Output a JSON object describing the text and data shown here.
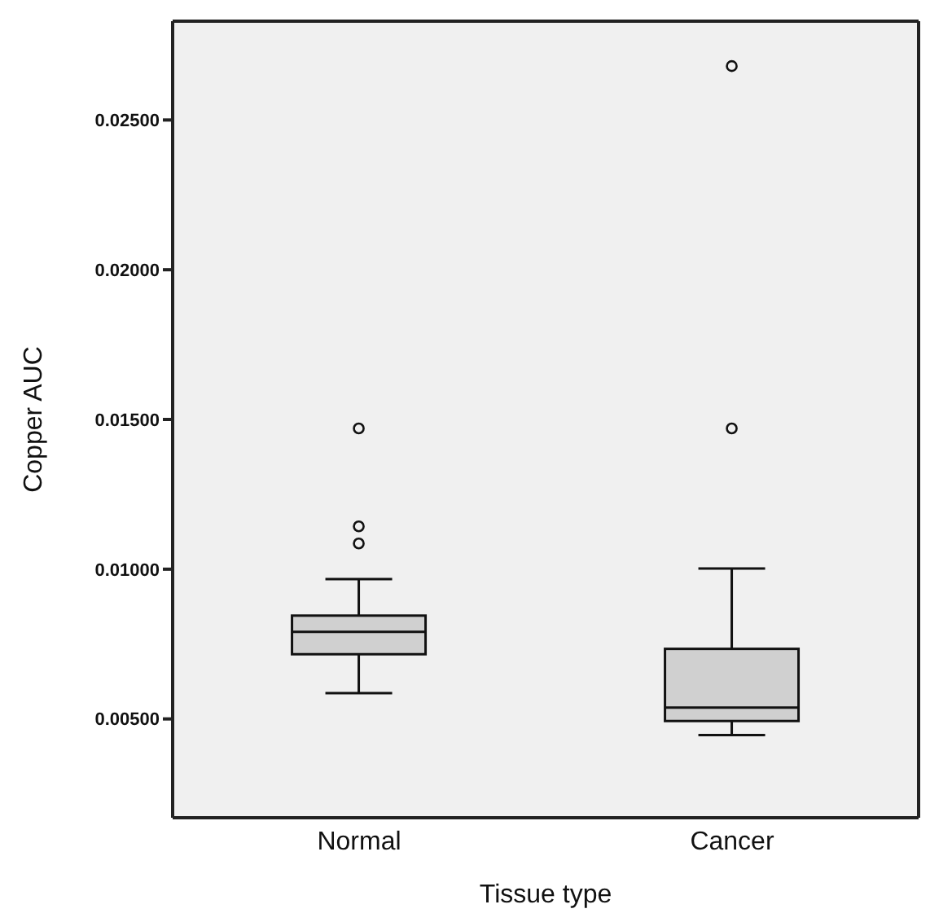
{
  "chart_data": {
    "type": "box",
    "xlabel": "Tissue type",
    "ylabel": "Copper AUC",
    "categories": [
      "Normal",
      "Cancer"
    ],
    "color": "#d0d0d0",
    "boxes": [
      {
        "low": 0.00586,
        "q1": 0.00716,
        "median": 0.00791,
        "q3": 0.00845,
        "high": 0.00967,
        "outliers": [
          0.01086,
          0.01143,
          0.0147
        ]
      },
      {
        "low": 0.00446,
        "q1": 0.00493,
        "median": 0.00538,
        "q3": 0.00734,
        "high": 0.01002,
        "outliers": [
          0.0147,
          0.0268
        ]
      }
    ],
    "ylim": [
      0.0017,
      0.0283
    ],
    "yticks": [
      {
        "value": 0.005,
        "label": "0.00500"
      },
      {
        "value": 0.01,
        "label": "0.01000"
      },
      {
        "value": 0.015,
        "label": "0.01500"
      },
      {
        "value": 0.02,
        "label": "0.02000"
      },
      {
        "value": 0.025,
        "label": "0.02500"
      }
    ],
    "grid": false
  }
}
